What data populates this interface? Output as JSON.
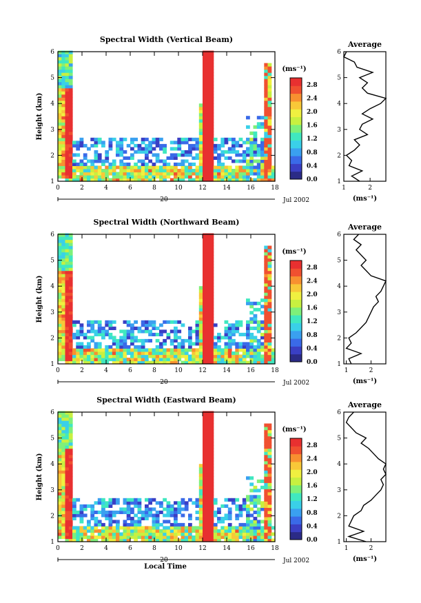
{
  "figure": {
    "date_label": "Jul 2002",
    "day_label": "20",
    "xlabel": "Local Time",
    "ylabel": "Height (km)",
    "avg_title": "Average",
    "avg_xlabel": "(ms⁻¹)",
    "cb_label": "(ms⁻¹)"
  },
  "colors": {
    "scale": [
      "#2b2b86",
      "#3a3fc4",
      "#3a6ae8",
      "#3aa0f0",
      "#3ad0e8",
      "#40e8c0",
      "#7ef07a",
      "#c8f040",
      "#f0f040",
      "#f8c838",
      "#f89030",
      "#f05030",
      "#e83030"
    ]
  },
  "chart_data": [
    {
      "type": "heatmap",
      "title": "Spectral Width (Vertical Beam)",
      "xlabel": "Local Time",
      "ylabel": "Height (km)",
      "xlim": [
        0,
        18
      ],
      "ylim": [
        1,
        6
      ],
      "x_ticks": [
        "0",
        "2",
        "4",
        "6",
        "8",
        "10",
        "12",
        "14",
        "16",
        "18"
      ],
      "y_ticks": [
        "1",
        "2",
        "3",
        "4",
        "5",
        "6"
      ],
      "colorbar": {
        "label": "(ms⁻¹)",
        "ticks": [
          "0.0",
          "0.4",
          "0.8",
          "1.2",
          "1.6",
          "2.0",
          "2.4",
          "2.8"
        ],
        "range": [
          0,
          3.0
        ]
      },
      "average": {
        "title": "Average",
        "xlabel": "(ms⁻¹)",
        "x_ticks": [
          "1",
          "2"
        ],
        "xlim": [
          1,
          2.6
        ],
        "height": [
          1.0,
          1.2,
          1.4,
          1.6,
          1.8,
          2.0,
          2.2,
          2.4,
          2.6,
          2.8,
          3.0,
          3.2,
          3.4,
          3.6,
          3.8,
          4.0,
          4.2,
          4.4,
          4.6,
          4.8,
          5.0,
          5.2,
          5.4,
          5.6,
          5.8,
          6.0
        ],
        "width": [
          1.6,
          1.3,
          1.7,
          1.2,
          1.3,
          1.1,
          1.4,
          1.6,
          1.4,
          1.9,
          1.6,
          1.7,
          2.1,
          1.7,
          2.0,
          2.4,
          2.6,
          1.9,
          1.7,
          1.9,
          1.6,
          2.1,
          1.5,
          1.4,
          1.0,
          1.1
        ]
      }
    },
    {
      "type": "heatmap",
      "title": "Spectral Width (Northward Beam)",
      "xlabel": "Local Time",
      "ylabel": "Height (km)",
      "xlim": [
        0,
        18
      ],
      "ylim": [
        1,
        6
      ],
      "x_ticks": [
        "0",
        "2",
        "4",
        "6",
        "8",
        "10",
        "12",
        "14",
        "16",
        "18"
      ],
      "y_ticks": [
        "1",
        "2",
        "3",
        "4",
        "5",
        "6"
      ],
      "colorbar": {
        "label": "(ms⁻¹)",
        "ticks": [
          "0.0",
          "0.4",
          "0.8",
          "1.2",
          "1.6",
          "2.0",
          "2.4",
          "2.8"
        ],
        "range": [
          0,
          3.0
        ]
      },
      "average": {
        "title": "Average",
        "xlabel": "(ms⁻¹)",
        "x_ticks": [
          "1",
          "2"
        ],
        "xlim": [
          0.9,
          2.6
        ],
        "height": [
          1.0,
          1.2,
          1.4,
          1.6,
          1.8,
          2.0,
          2.2,
          2.4,
          2.6,
          2.8,
          3.0,
          3.2,
          3.4,
          3.6,
          3.8,
          4.0,
          4.2,
          4.4,
          4.6,
          4.8,
          5.0,
          5.2,
          5.4,
          5.6,
          5.8,
          6.0
        ],
        "width": [
          1.2,
          1.1,
          1.6,
          1.0,
          1.2,
          1.1,
          1.4,
          1.6,
          1.8,
          1.9,
          2.0,
          2.1,
          2.3,
          2.2,
          2.4,
          2.5,
          2.6,
          2.0,
          1.8,
          1.6,
          1.8,
          1.6,
          1.4,
          1.6,
          1.3,
          1.5
        ]
      }
    },
    {
      "type": "heatmap",
      "title": "Spectral Width (Eastward Beam)",
      "xlabel": "Local Time",
      "ylabel": "Height (km)",
      "xlim": [
        0,
        18
      ],
      "ylim": [
        1,
        6
      ],
      "x_ticks": [
        "0",
        "2",
        "4",
        "6",
        "8",
        "10",
        "12",
        "14",
        "16",
        "18"
      ],
      "y_ticks": [
        "1",
        "2",
        "3",
        "4",
        "5",
        "6"
      ],
      "colorbar": {
        "label": "(ms⁻¹)",
        "ticks": [
          "0.0",
          "0.4",
          "0.8",
          "1.2",
          "1.6",
          "2.0",
          "2.4",
          "2.8"
        ],
        "range": [
          0,
          3.0
        ]
      },
      "average": {
        "title": "Average",
        "xlabel": "(ms⁻¹)",
        "x_ticks": [
          "1",
          "2"
        ],
        "xlim": [
          0.9,
          2.6
        ],
        "height": [
          1.0,
          1.2,
          1.4,
          1.6,
          1.8,
          2.0,
          2.2,
          2.4,
          2.6,
          2.8,
          3.0,
          3.2,
          3.4,
          3.6,
          3.8,
          4.0,
          4.2,
          4.4,
          4.6,
          4.8,
          5.0,
          5.2,
          5.4,
          5.6,
          5.8,
          6.0
        ],
        "width": [
          1.8,
          1.1,
          1.7,
          1.1,
          1.2,
          1.3,
          1.6,
          1.7,
          2.0,
          2.2,
          2.4,
          2.5,
          2.4,
          2.6,
          2.5,
          2.6,
          2.3,
          2.1,
          1.9,
          1.6,
          1.8,
          1.4,
          1.2,
          1.0,
          1.1,
          1.3
        ]
      }
    }
  ]
}
